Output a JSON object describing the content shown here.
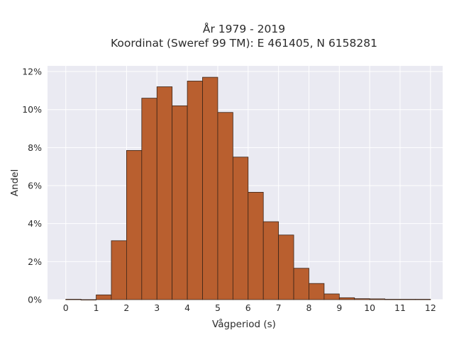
{
  "chart_data": {
    "type": "bar",
    "title_line1": "År 1979 - 2019",
    "title_line2": "Koordinat (Sweref 99 TM): E 461405, N 6158281",
    "xlabel": "Vågperiod (s)",
    "ylabel": "Andel",
    "bin_width": 0.5,
    "bin_starts": [
      0,
      0.5,
      1,
      1.5,
      2,
      2.5,
      3,
      3.5,
      4,
      4.5,
      5,
      5.5,
      6,
      6.5,
      7,
      7.5,
      8,
      8.5,
      9,
      9.5,
      10,
      10.5,
      11,
      11.5
    ],
    "values": [
      0.02,
      0.0,
      0.25,
      3.1,
      7.85,
      10.6,
      11.2,
      10.2,
      11.5,
      11.7,
      9.85,
      7.5,
      5.65,
      4.1,
      3.4,
      1.65,
      0.85,
      0.3,
      0.1,
      0.05,
      0.04,
      0.02,
      0.02,
      0.02
    ],
    "xlim": [
      -0.6,
      12.4
    ],
    "ylim": [
      0,
      12.3
    ],
    "x_ticks": [
      0,
      1,
      2,
      3,
      4,
      5,
      6,
      7,
      8,
      9,
      10,
      11,
      12
    ],
    "x_tick_labels": [
      "0",
      "1",
      "2",
      "3",
      "4",
      "5",
      "6",
      "7",
      "8",
      "9",
      "10",
      "11",
      "12"
    ],
    "y_ticks": [
      0,
      2,
      4,
      6,
      8,
      10,
      12
    ],
    "y_tick_labels": [
      "0%",
      "2%",
      "4%",
      "6%",
      "8%",
      "10%",
      "12%"
    ],
    "bar_color": "#b95f2f",
    "grid": true
  }
}
